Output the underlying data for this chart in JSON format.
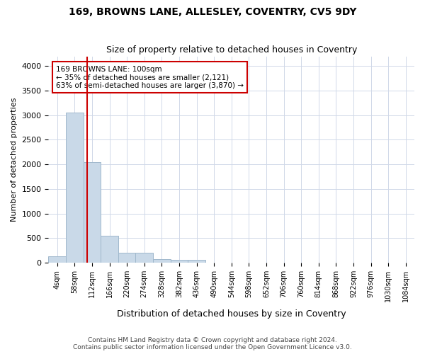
{
  "title": "169, BROWNS LANE, ALLESLEY, COVENTRY, CV5 9DY",
  "subtitle": "Size of property relative to detached houses in Coventry",
  "xlabel": "Distribution of detached houses by size in Coventry",
  "ylabel": "Number of detached properties",
  "bin_labels": [
    "4sqm",
    "58sqm",
    "112sqm",
    "166sqm",
    "220sqm",
    "274sqm",
    "328sqm",
    "382sqm",
    "436sqm",
    "490sqm",
    "544sqm",
    "598sqm",
    "652sqm",
    "706sqm",
    "760sqm",
    "814sqm",
    "868sqm",
    "922sqm",
    "976sqm",
    "1030sqm",
    "1084sqm"
  ],
  "bar_values": [
    130,
    3050,
    2050,
    550,
    195,
    195,
    65,
    50,
    50,
    0,
    0,
    0,
    0,
    0,
    0,
    0,
    0,
    0,
    0,
    0,
    0
  ],
  "bar_color": "#c9d9e8",
  "bar_edgecolor": "#a0b8cc",
  "property_line_x": 1.7,
  "property_line_color": "#cc0000",
  "annotation_text": "169 BROWNS LANE: 100sqm\n← 35% of detached houses are smaller (2,121)\n63% of semi-detached houses are larger (3,870) →",
  "annotation_box_color": "#ffffff",
  "annotation_box_edge": "#cc0000",
  "ylim": [
    0,
    4200
  ],
  "yticks": [
    0,
    500,
    1000,
    1500,
    2000,
    2500,
    3000,
    3500,
    4000
  ],
  "footer1": "Contains HM Land Registry data © Crown copyright and database right 2024.",
  "footer2": "Contains public sector information licensed under the Open Government Licence v3.0.",
  "bg_color": "#ffffff",
  "grid_color": "#d0d8e8"
}
